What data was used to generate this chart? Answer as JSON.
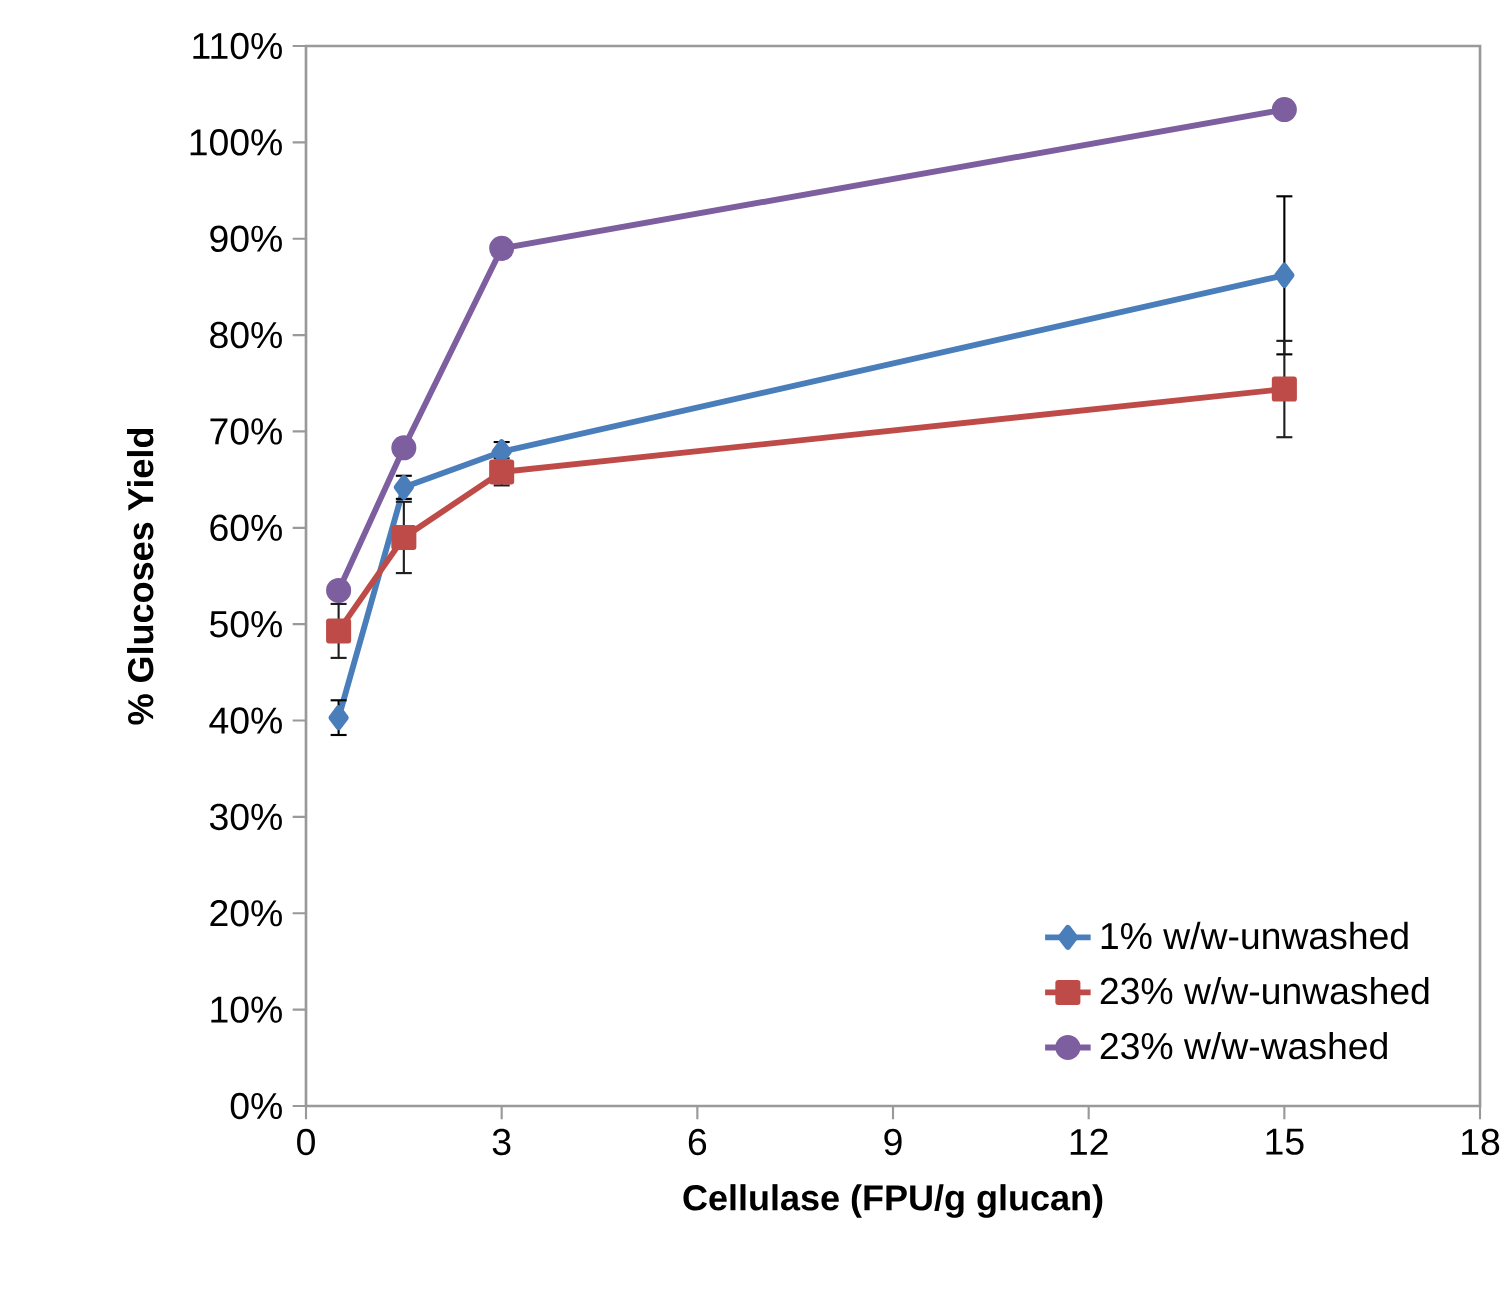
{
  "chart_data": {
    "type": "line",
    "xlabel": "Cellulase (FPU/g glucan)",
    "ylabel": "% Glucoses Yield",
    "x": [
      0.5,
      1.5,
      3,
      15
    ],
    "series": [
      {
        "name": "1% w/w-unwashed",
        "color": "#4a7ebb",
        "marker": "diamond",
        "values": [
          40.3,
          64.2,
          67.9,
          86.2
        ],
        "errors": [
          1.8,
          1.2,
          1,
          8.2
        ]
      },
      {
        "name": "23% w/w-unwashed",
        "color": "#be4b48",
        "marker": "square",
        "values": [
          49.3,
          59.0,
          65.8,
          74.4
        ],
        "errors": [
          2.8,
          3.7,
          1.4,
          5
        ]
      },
      {
        "name": "23% w/w-washed",
        "color": "#7d5fa0",
        "marker": "circle",
        "values": [
          53.5,
          68.3,
          89.0,
          103.4
        ]
      }
    ],
    "xlim": [
      0,
      18
    ],
    "xticks": [
      0,
      3,
      6,
      9,
      12,
      15,
      18
    ],
    "ylim": [
      0,
      110
    ],
    "yticks": [
      {
        "value": 0,
        "label": "0%"
      },
      {
        "value": 10,
        "label": "10%"
      },
      {
        "value": 20,
        "label": "20%"
      },
      {
        "value": 30,
        "label": "30%"
      },
      {
        "value": 40,
        "label": "40%"
      },
      {
        "value": 50,
        "label": "50%"
      },
      {
        "value": 60,
        "label": "60%"
      },
      {
        "value": 70,
        "label": "70%"
      },
      {
        "value": 80,
        "label": "80%"
      },
      {
        "value": 90,
        "label": "90%"
      },
      {
        "value": 100,
        "label": "100%"
      },
      {
        "value": 110,
        "label": "110%"
      }
    ],
    "legend": "bottom right",
    "grid": false
  }
}
